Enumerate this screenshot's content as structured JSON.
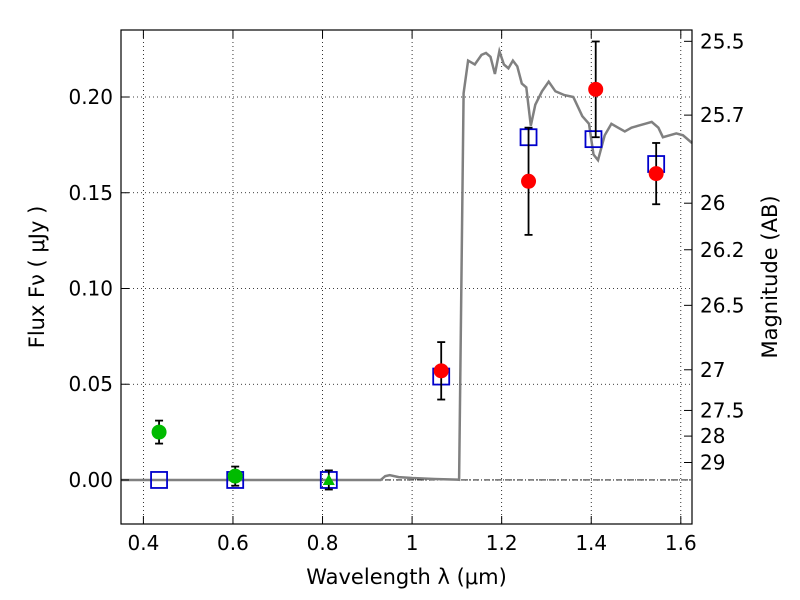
{
  "chart_data": {
    "type": "scatter",
    "xlabel": "Wavelength  λ (μm)",
    "ylabel": "Flux  Fν  ( μJy )",
    "y2label": "Magnitude (AB)",
    "xlim": [
      0.35,
      1.625
    ],
    "ylim": [
      -0.023,
      0.235
    ],
    "grid": true,
    "x_ticks": [
      0.4,
      0.6,
      0.8,
      1.0,
      1.2,
      1.4,
      1.6
    ],
    "x_tick_labels": [
      "0.4",
      "0.6",
      "0.8",
      "1",
      "1.2",
      "1.4",
      "1.6"
    ],
    "y_ticks": [
      0.0,
      0.05,
      0.1,
      0.15,
      0.2
    ],
    "y_tick_labels": [
      "0.00",
      "0.05",
      "0.10",
      "0.15",
      "0.20"
    ],
    "mag_ticks": [
      25.5,
      25.7,
      26,
      26.2,
      26.5,
      27,
      27.5,
      28,
      29
    ],
    "mag_tick_labels": [
      "25.5",
      "25.7",
      "26",
      "26.2",
      "26.5",
      "27",
      "27.5",
      "28",
      "29"
    ],
    "colors": {
      "model": "#808080",
      "observed": "#ff0000",
      "observed_optical": "#00bb00",
      "model_photometry": "#0000cc",
      "errorbar": "#000000"
    },
    "model_spectrum": {
      "x": [
        0.35,
        0.93,
        0.94,
        0.95,
        0.97,
        1.0,
        1.05,
        1.1,
        1.105,
        1.115,
        1.125,
        1.14,
        1.155,
        1.165,
        1.175,
        1.185,
        1.195,
        1.205,
        1.215,
        1.225,
        1.235,
        1.245,
        1.255,
        1.265,
        1.275,
        1.29,
        1.305,
        1.32,
        1.34,
        1.36,
        1.38,
        1.395,
        1.405,
        1.415,
        1.43,
        1.445,
        1.46,
        1.475,
        1.49,
        1.505,
        1.52,
        1.535,
        1.55,
        1.56,
        1.575,
        1.59,
        1.605,
        1.625
      ],
      "y": [
        0.0,
        0.0,
        0.002,
        0.0025,
        0.0015,
        0.001,
        0.0005,
        0.0002,
        0.0001,
        0.202,
        0.219,
        0.217,
        0.222,
        0.223,
        0.221,
        0.212,
        0.224,
        0.217,
        0.215,
        0.219,
        0.216,
        0.207,
        0.205,
        0.185,
        0.196,
        0.203,
        0.208,
        0.203,
        0.201,
        0.2,
        0.19,
        0.186,
        0.17,
        0.167,
        0.18,
        0.186,
        0.184,
        0.182,
        0.184,
        0.185,
        0.186,
        0.187,
        0.184,
        0.179,
        0.18,
        0.181,
        0.18,
        0.176
      ]
    },
    "observed_points": [
      {
        "x": 0.435,
        "y": 0.025,
        "err": 0.006,
        "color": "#00bb00",
        "marker": "circle"
      },
      {
        "x": 0.605,
        "y": 0.002,
        "err": 0.005,
        "color": "#00bb00",
        "marker": "circle"
      },
      {
        "x": 0.814,
        "y": 0.0,
        "err": 0.005,
        "color": "#00bb00",
        "marker": "triangle"
      },
      {
        "x": 1.065,
        "y": 0.057,
        "err": 0.015,
        "color": "#ff0000",
        "marker": "circle"
      },
      {
        "x": 1.26,
        "y": 0.156,
        "err": 0.028,
        "color": "#ff0000",
        "marker": "circle"
      },
      {
        "x": 1.41,
        "y": 0.204,
        "err": 0.025,
        "color": "#ff0000",
        "marker": "circle"
      },
      {
        "x": 1.545,
        "y": 0.16,
        "err": 0.016,
        "color": "#ff0000",
        "marker": "circle"
      }
    ],
    "model_photometry": {
      "x": [
        0.435,
        0.605,
        0.814,
        1.065,
        1.26,
        1.405,
        1.545
      ],
      "y": [
        0.0,
        0.0,
        0.0,
        0.054,
        0.179,
        0.178,
        0.165
      ]
    }
  }
}
